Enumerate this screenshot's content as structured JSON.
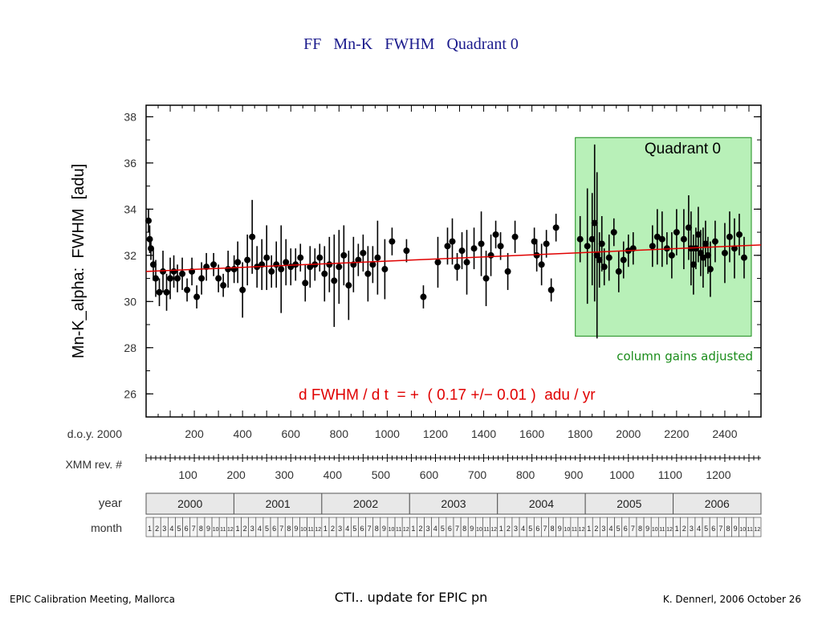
{
  "slide": {
    "title": "FF   Mn-K   FWHM   Quadrant 0",
    "footer_left": "EPIC Calibration Meeting, Mallorca",
    "footer_center": "CTI.. update for EPIC pn",
    "footer_right": "K. Dennerl, 2006 October 26"
  },
  "chart_data": {
    "type": "scatter",
    "ylabel": "Mn-K_alpha:  FWHM  [adu]",
    "ylim": [
      25,
      38.5
    ],
    "xlim": [
      0,
      2550
    ],
    "yticks": [
      26,
      28,
      30,
      32,
      34,
      36,
      38
    ],
    "box_label": "Quadrant 0",
    "box_range": {
      "x": [
        1780,
        2510
      ],
      "y": [
        28.5,
        37.1
      ]
    },
    "box_color": "#b8f0b8",
    "annotation": "column gains adjusted",
    "annotation_color": "#1a8c1a",
    "fit_label": "d FWHM / d t  = +  ( 0.17 +/− 0.01 )  adu / yr",
    "fit_color": "#e00000",
    "fit_line": {
      "x": [
        0,
        2550
      ],
      "y": [
        31.3,
        32.45
      ]
    },
    "doy_label": "d.o.y. 2000",
    "doy_ticks": [
      200,
      400,
      600,
      800,
      1000,
      1200,
      1400,
      1600,
      1800,
      2000,
      2200,
      2400
    ],
    "rev_label": "XMM rev. #",
    "rev_ticks": [
      {
        "rev": 100,
        "doy": 200
      },
      {
        "rev": 200,
        "doy": 400
      },
      {
        "rev": 300,
        "doy": 600
      },
      {
        "rev": 400,
        "doy": 800
      },
      {
        "rev": 500,
        "doy": 1000
      },
      {
        "rev": 600,
        "doy": 1200
      },
      {
        "rev": 700,
        "doy": 1400
      },
      {
        "rev": 800,
        "doy": 1600
      },
      {
        "rev": 900,
        "doy": 1800
      },
      {
        "rev": 1000,
        "doy": 2000
      },
      {
        "rev": 1100,
        "doy": 2200
      },
      {
        "rev": 1200,
        "doy": 2400
      }
    ],
    "year_label": "year",
    "years": [
      "2000",
      "2001",
      "2002",
      "2003",
      "2004",
      "2005",
      "2006"
    ],
    "month_label": "month",
    "month_numbers": [
      "1",
      "2",
      "3",
      "4",
      "5",
      "6",
      "7",
      "8",
      "9",
      "10",
      "11",
      "12"
    ],
    "series": [
      {
        "x": [
          10,
          15,
          20,
          30,
          40,
          55,
          70,
          85,
          100,
          115,
          130,
          150,
          170,
          190,
          210,
          230,
          250,
          280,
          300,
          320,
          340,
          365,
          380,
          400,
          420,
          440,
          460,
          480,
          500,
          520,
          540,
          560,
          580,
          600,
          620,
          640,
          660,
          680,
          700,
          720,
          740,
          760,
          780,
          800,
          820,
          840,
          860,
          880,
          900,
          920,
          940,
          960,
          990,
          1020,
          1080,
          1150,
          1210,
          1250,
          1270,
          1290,
          1310,
          1330,
          1360,
          1390,
          1410,
          1430,
          1450,
          1470,
          1500,
          1530,
          1610,
          1620,
          1640,
          1660,
          1680,
          1700,
          1800,
          1830,
          1850,
          1860,
          1870,
          1880,
          1890,
          1900,
          1920,
          1940,
          1960,
          1980,
          2000,
          2020,
          2100,
          2120,
          2140,
          2160,
          2180,
          2200,
          2230,
          2250,
          2260,
          2270,
          2280,
          2290,
          2300,
          2310,
          2320,
          2330,
          2340,
          2360,
          2400,
          2420,
          2440,
          2460,
          2480
        ],
        "y": [
          33.5,
          32.7,
          32.3,
          31.6,
          31.0,
          30.4,
          31.3,
          30.4,
          31.0,
          31.3,
          31.0,
          31.2,
          30.5,
          31.3,
          30.2,
          31.0,
          31.5,
          31.6,
          31.0,
          30.7,
          31.4,
          31.4,
          31.7,
          30.5,
          31.8,
          32.8,
          31.5,
          31.6,
          31.9,
          31.3,
          31.6,
          31.4,
          31.7,
          31.5,
          31.6,
          31.9,
          30.8,
          31.5,
          31.6,
          31.9,
          31.2,
          31.6,
          30.9,
          31.5,
          32.0,
          30.7,
          31.6,
          31.8,
          32.1,
          31.2,
          31.6,
          31.9,
          31.4,
          32.6,
          32.2,
          30.2,
          31.7,
          32.4,
          32.6,
          31.5,
          32.2,
          31.7,
          32.3,
          32.5,
          31.0,
          32.0,
          32.9,
          32.4,
          31.3,
          32.8,
          32.6,
          32.0,
          31.6,
          32.5,
          30.5,
          33.2,
          32.7,
          32.4,
          32.7,
          33.4,
          32.0,
          31.8,
          32.5,
          31.5,
          31.9,
          33.0,
          31.3,
          31.8,
          32.2,
          32.3,
          32.4,
          32.8,
          32.7,
          32.3,
          32.0,
          33.0,
          32.7,
          33.2,
          32.3,
          31.6,
          32.3,
          32.9,
          32.1,
          31.9,
          32.5,
          32.0,
          31.4,
          32.6,
          32.1,
          32.8,
          32.3,
          32.9,
          31.9
        ],
        "err": [
          0.5,
          0.6,
          0.5,
          0.7,
          0.8,
          0.6,
          0.9,
          0.8,
          0.9,
          0.7,
          0.6,
          0.7,
          0.5,
          0.6,
          0.5,
          0.7,
          0.6,
          0.5,
          0.6,
          0.5,
          0.8,
          0.6,
          0.9,
          1.2,
          1.1,
          1.6,
          0.9,
          1.1,
          1.4,
          0.7,
          1.0,
          1.9,
          1.0,
          0.8,
          0.7,
          0.6,
          0.8,
          0.9,
          0.7,
          0.6,
          1.2,
          1.2,
          2.0,
          1.6,
          1.3,
          1.5,
          1.2,
          0.7,
          0.8,
          1.2,
          0.8,
          1.6,
          1.3,
          0.6,
          0.5,
          0.5,
          1.1,
          0.8,
          1.0,
          0.6,
          0.8,
          1.4,
          0.9,
          1.4,
          1.2,
          0.9,
          0.6,
          0.6,
          0.8,
          0.7,
          0.6,
          0.7,
          0.9,
          0.6,
          0.5,
          0.6,
          1.0,
          2.5,
          2.0,
          3.4,
          3.6,
          1.2,
          1.2,
          0.8,
          1.0,
          0.6,
          0.9,
          0.8,
          0.7,
          0.7,
          0.9,
          1.2,
          1.2,
          0.7,
          1.0,
          1.0,
          1.3,
          1.4,
          1.6,
          1.3,
          0.9,
          1.2,
          1.0,
          1.3,
          1.0,
          0.8,
          1.2,
          0.9,
          1.3,
          1.1,
          1.3,
          0.9,
          0.9
        ]
      }
    ]
  }
}
